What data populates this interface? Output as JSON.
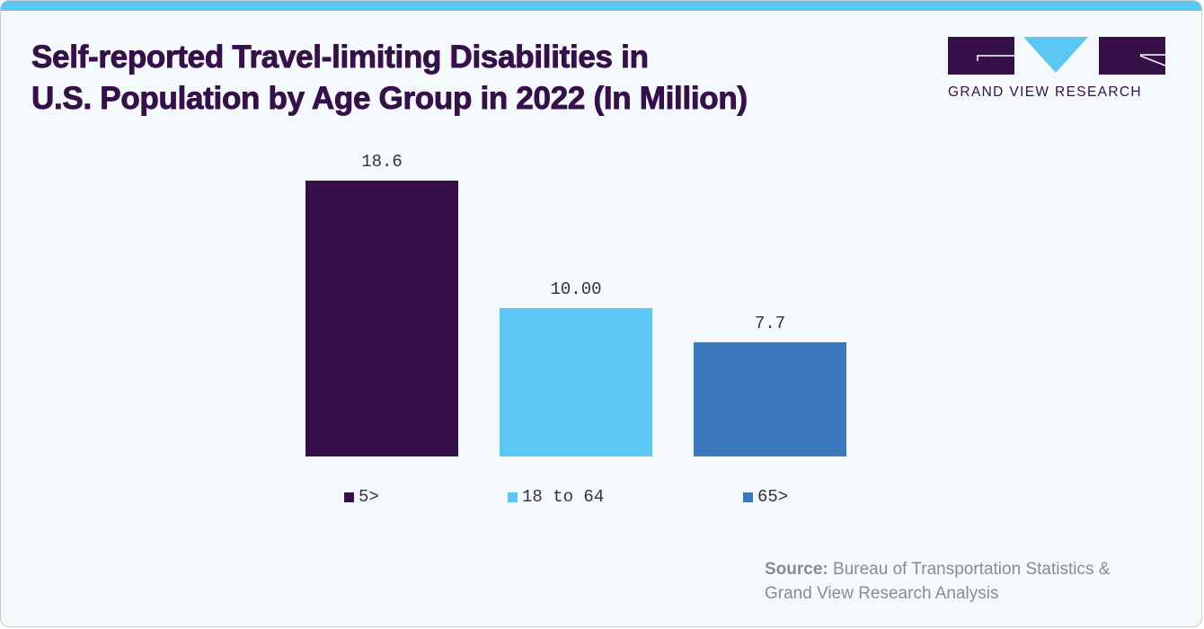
{
  "title": {
    "line1": "Self-reported Travel-limiting Disabilities in",
    "line2": "U.S. Population by Age Group in 2022 (In Million)"
  },
  "logo": {
    "text": "GRAND VIEW RESEARCH",
    "icon": "gvr-logo-icon"
  },
  "colors": {
    "accent": "#5bc7f3",
    "title": "#361048",
    "series_dark_purple": "#361048",
    "series_light_blue": "#5bc7f3",
    "series_mid_blue": "#3c79bc"
  },
  "source": {
    "label": "Source:",
    "line1": "Bureau of Transportation Statistics &",
    "line2": "Grand View Research Analysis"
  },
  "chart_data": {
    "type": "bar",
    "title": "Self-reported Travel-limiting Disabilities in U.S. Population by Age Group in 2022 (In Million)",
    "xlabel": "",
    "ylabel": "",
    "categories": [
      "5>",
      "18 to 64",
      "65>"
    ],
    "values": [
      18.6,
      10.0,
      7.7
    ],
    "value_labels": [
      "18.6",
      "10.00",
      "7.7"
    ],
    "colors": [
      "#361048",
      "#5bc7f3",
      "#3c79bc"
    ],
    "ylim": [
      0,
      18.6
    ],
    "grid": false,
    "axes_visible": false,
    "legend": {
      "placement": "bottom",
      "entries": [
        "5>",
        "18 to 64",
        "65>"
      ]
    }
  }
}
